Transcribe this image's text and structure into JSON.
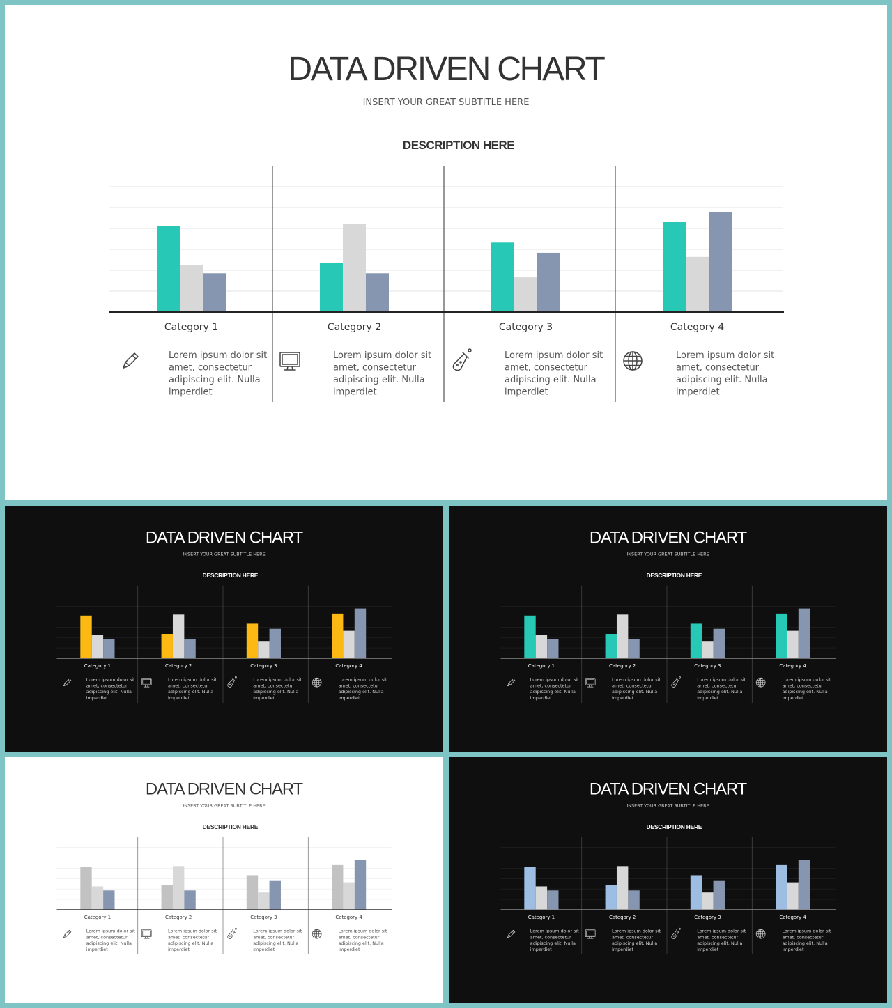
{
  "title": "DATA DRIVEN CHART",
  "subtitle": "INSERT  YOUR GREAT SUBTITLE HERE",
  "description": "DESCRIPTION HERE",
  "columns": [
    {
      "icon": "pencil-icon",
      "text_lines": [
        "Lorem ipsum dolor sit",
        "amet, consectetur",
        "adipiscing elit.  Nulla",
        "imperdiet"
      ]
    },
    {
      "icon": "monitor-icon",
      "text_lines": [
        "Lorem ipsum dolor sit",
        "amet, consectetur",
        "adipiscing elit.  Nulla",
        "imperdiet"
      ]
    },
    {
      "icon": "flask-icon",
      "text_lines": [
        "Lorem ipsum dolor sit",
        "amet, consectetur",
        "adipiscing elit.  Nulla",
        "imperdiet"
      ]
    },
    {
      "icon": "globe-icon",
      "text_lines": [
        "Lorem ipsum dolor sit",
        "amet, consectetur",
        "adipiscing elit.  Nulla",
        "imperdiet"
      ]
    }
  ],
  "chart_data": {
    "type": "bar",
    "categories": [
      "Category 1",
      "Category 2",
      "Category 3",
      "Category 4"
    ],
    "series": [
      {
        "values": [
          4.2,
          2.4,
          3.4,
          4.4
        ]
      },
      {
        "values": [
          2.3,
          4.3,
          1.7,
          2.7
        ]
      },
      {
        "values": [
          1.9,
          1.9,
          2.9,
          4.9
        ]
      }
    ],
    "ylim": [
      0,
      6
    ],
    "gridlines": true,
    "legend": "none"
  },
  "variants": [
    {
      "id": "main",
      "background": "#ffffff",
      "text_color": "#333333",
      "muted_text_color": "#555555",
      "axis_color": "#222222",
      "grid_color": "#e3e3e3",
      "divider_color": "#555555",
      "icon_color": "#444444",
      "series_colors": [
        "#27c9b6",
        "#d8d8d8",
        "#8796b0"
      ]
    },
    {
      "id": "dark-yellow",
      "background": "#0f0f0f",
      "text_color": "#ffffff",
      "muted_text_color": "#cfcfcf",
      "axis_color": "#888888",
      "grid_color": "#2b2b2b",
      "divider_color": "#555555",
      "icon_color": "#cccccc",
      "series_colors": [
        "#fdb913",
        "#d8d8d8",
        "#8796b0"
      ]
    },
    {
      "id": "dark-teal",
      "background": "#0f0f0f",
      "text_color": "#ffffff",
      "muted_text_color": "#cfcfcf",
      "axis_color": "#888888",
      "grid_color": "#2b2b2b",
      "divider_color": "#555555",
      "icon_color": "#cccccc",
      "series_colors": [
        "#27c9b6",
        "#d8d8d8",
        "#8796b0"
      ]
    },
    {
      "id": "light-gray",
      "background": "#ffffff",
      "text_color": "#333333",
      "muted_text_color": "#555555",
      "axis_color": "#333333",
      "grid_color": "#e6e6e6",
      "divider_color": "#555555",
      "icon_color": "#444444",
      "series_colors": [
        "#c2c2c2",
        "#d8d8d8",
        "#8796b0"
      ]
    },
    {
      "id": "dark-blue",
      "background": "#0f0f0f",
      "text_color": "#ffffff",
      "muted_text_color": "#cfcfcf",
      "axis_color": "#888888",
      "grid_color": "#2b2b2b",
      "divider_color": "#555555",
      "icon_color": "#cccccc",
      "series_colors": [
        "#9dbde3",
        "#d8d8d8",
        "#8796b0"
      ]
    }
  ]
}
